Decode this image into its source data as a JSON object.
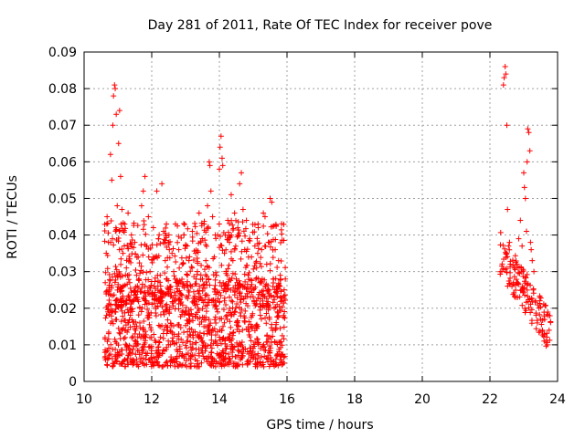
{
  "chart_data": {
    "type": "scatter",
    "title": "Day 281 of 2011, Rate Of TEC Index for receiver pove",
    "xlabel": "GPS time / hours",
    "ylabel": "ROTI / TECUs",
    "xlim": [
      10,
      24
    ],
    "ylim": [
      0,
      0.09
    ],
    "xticks": [
      "10",
      "12",
      "14",
      "16",
      "18",
      "20",
      "22",
      "24"
    ],
    "yticks": [
      "0",
      "0.01",
      "0.02",
      "0.03",
      "0.04",
      "0.05",
      "0.06",
      "0.07",
      "0.08",
      "0.09"
    ],
    "grid": true,
    "marker": "+",
    "color": "#ff0000",
    "series": [
      {
        "points": [
          [
            10.62,
            0.012
          ],
          [
            10.66,
            0.018
          ],
          [
            10.68,
            0.045
          ],
          [
            10.72,
            0.038
          ],
          [
            10.75,
            0.025
          ],
          [
            10.78,
            0.062
          ],
          [
            10.82,
            0.055
          ],
          [
            10.85,
            0.07
          ],
          [
            10.87,
            0.078
          ],
          [
            10.9,
            0.081
          ],
          [
            10.92,
            0.08
          ],
          [
            10.95,
            0.073
          ],
          [
            10.98,
            0.048
          ],
          [
            11.02,
            0.065
          ],
          [
            11.05,
            0.074
          ],
          [
            11.08,
            0.056
          ],
          [
            11.12,
            0.047
          ],
          [
            11.15,
            0.035
          ],
          [
            11.2,
            0.043
          ],
          [
            11.25,
            0.031
          ],
          [
            11.3,
            0.046
          ],
          [
            11.35,
            0.027
          ],
          [
            11.4,
            0.04
          ],
          [
            11.45,
            0.022
          ],
          [
            11.5,
            0.038
          ],
          [
            11.55,
            0.029
          ],
          [
            11.6,
            0.034
          ],
          [
            11.65,
            0.02
          ],
          [
            11.7,
            0.048
          ],
          [
            11.75,
            0.052
          ],
          [
            11.8,
            0.056
          ],
          [
            11.85,
            0.037
          ],
          [
            11.9,
            0.045
          ],
          [
            11.95,
            0.03
          ],
          [
            12.0,
            0.024
          ],
          [
            12.05,
            0.042
          ],
          [
            12.1,
            0.034
          ],
          [
            12.15,
            0.052
          ],
          [
            12.2,
            0.039
          ],
          [
            12.25,
            0.029
          ],
          [
            12.3,
            0.054
          ],
          [
            12.35,
            0.041
          ],
          [
            12.4,
            0.033
          ],
          [
            12.45,
            0.028
          ],
          [
            12.5,
            0.038
          ],
          [
            12.55,
            0.025
          ],
          [
            12.6,
            0.035
          ],
          [
            12.65,
            0.03
          ],
          [
            12.7,
            0.043
          ],
          [
            12.75,
            0.027
          ],
          [
            12.8,
            0.036
          ],
          [
            12.85,
            0.024
          ],
          [
            12.9,
            0.032
          ],
          [
            12.95,
            0.04
          ],
          [
            13.0,
            0.037
          ],
          [
            13.05,
            0.029
          ],
          [
            13.1,
            0.033
          ],
          [
            13.15,
            0.026
          ],
          [
            13.2,
            0.041
          ],
          [
            13.25,
            0.022
          ],
          [
            13.3,
            0.035
          ],
          [
            13.35,
            0.03
          ],
          [
            13.4,
            0.046
          ],
          [
            13.45,
            0.038
          ],
          [
            13.5,
            0.028
          ],
          [
            13.55,
            0.043
          ],
          [
            13.6,
            0.033
          ],
          [
            13.65,
            0.048
          ],
          [
            13.7,
            0.06
          ],
          [
            13.72,
            0.059
          ],
          [
            13.75,
            0.052
          ],
          [
            13.8,
            0.045
          ],
          [
            13.85,
            0.034
          ],
          [
            13.9,
            0.029
          ],
          [
            13.95,
            0.04
          ],
          [
            14.0,
            0.058
          ],
          [
            14.02,
            0.064
          ],
          [
            14.05,
            0.067
          ],
          [
            14.08,
            0.061
          ],
          [
            14.1,
            0.059
          ],
          [
            14.15,
            0.035
          ],
          [
            14.2,
            0.03
          ],
          [
            14.25,
            0.044
          ],
          [
            14.3,
            0.038
          ],
          [
            14.35,
            0.051
          ],
          [
            14.4,
            0.033
          ],
          [
            14.45,
            0.046
          ],
          [
            14.5,
            0.028
          ],
          [
            14.55,
            0.04
          ],
          [
            14.6,
            0.054
          ],
          [
            14.65,
            0.057
          ],
          [
            14.7,
            0.047
          ],
          [
            14.75,
            0.036
          ],
          [
            14.8,
            0.044
          ],
          [
            14.85,
            0.029
          ],
          [
            14.9,
            0.039
          ],
          [
            14.95,
            0.034
          ],
          [
            15.0,
            0.025
          ],
          [
            15.05,
            0.037
          ],
          [
            15.1,
            0.031
          ],
          [
            15.15,
            0.042
          ],
          [
            15.2,
            0.027
          ],
          [
            15.25,
            0.036
          ],
          [
            15.3,
            0.046
          ],
          [
            15.35,
            0.045
          ],
          [
            15.4,
            0.032
          ],
          [
            15.45,
            0.038
          ],
          [
            15.5,
            0.05
          ],
          [
            15.55,
            0.049
          ],
          [
            15.6,
            0.028
          ],
          [
            15.65,
            0.036
          ],
          [
            15.7,
            0.024
          ],
          [
            15.75,
            0.033
          ],
          [
            15.8,
            0.029
          ],
          [
            15.85,
            0.022
          ],
          [
            15.9,
            0.018
          ],
          [
            15.95,
            0.028
          ],
          [
            22.35,
            0.03
          ],
          [
            22.4,
            0.081
          ],
          [
            22.42,
            0.083
          ],
          [
            22.45,
            0.086
          ],
          [
            22.47,
            0.084
          ],
          [
            22.5,
            0.07
          ],
          [
            22.52,
            0.047
          ],
          [
            22.55,
            0.037
          ],
          [
            22.58,
            0.038
          ],
          [
            22.6,
            0.032
          ],
          [
            22.65,
            0.026
          ],
          [
            22.7,
            0.027
          ],
          [
            22.75,
            0.023
          ],
          [
            22.8,
            0.032
          ],
          [
            22.85,
            0.039
          ],
          [
            22.9,
            0.044
          ],
          [
            22.95,
            0.037
          ],
          [
            23.0,
            0.057
          ],
          [
            23.02,
            0.053
          ],
          [
            23.05,
            0.05
          ],
          [
            23.08,
            0.041
          ],
          [
            23.1,
            0.06
          ],
          [
            23.12,
            0.069
          ],
          [
            23.15,
            0.068
          ],
          [
            23.18,
            0.063
          ],
          [
            23.2,
            0.038
          ],
          [
            23.22,
            0.036
          ],
          [
            23.25,
            0.033
          ],
          [
            23.28,
            0.025
          ],
          [
            23.3,
            0.03
          ],
          [
            23.35,
            0.022
          ],
          [
            23.4,
            0.016
          ],
          [
            23.45,
            0.02
          ],
          [
            23.5,
            0.017
          ],
          [
            23.55,
            0.014
          ],
          [
            23.6,
            0.013
          ],
          [
            23.65,
            0.011
          ],
          [
            23.7,
            0.01
          ],
          [
            23.75,
            0.014
          ]
        ]
      }
    ],
    "dense_band": {
      "x_ranges": [
        [
          10.6,
          15.95
        ],
        [
          22.3,
          23.8
        ]
      ],
      "y_core": [
        0.004,
        0.028
      ]
    }
  }
}
